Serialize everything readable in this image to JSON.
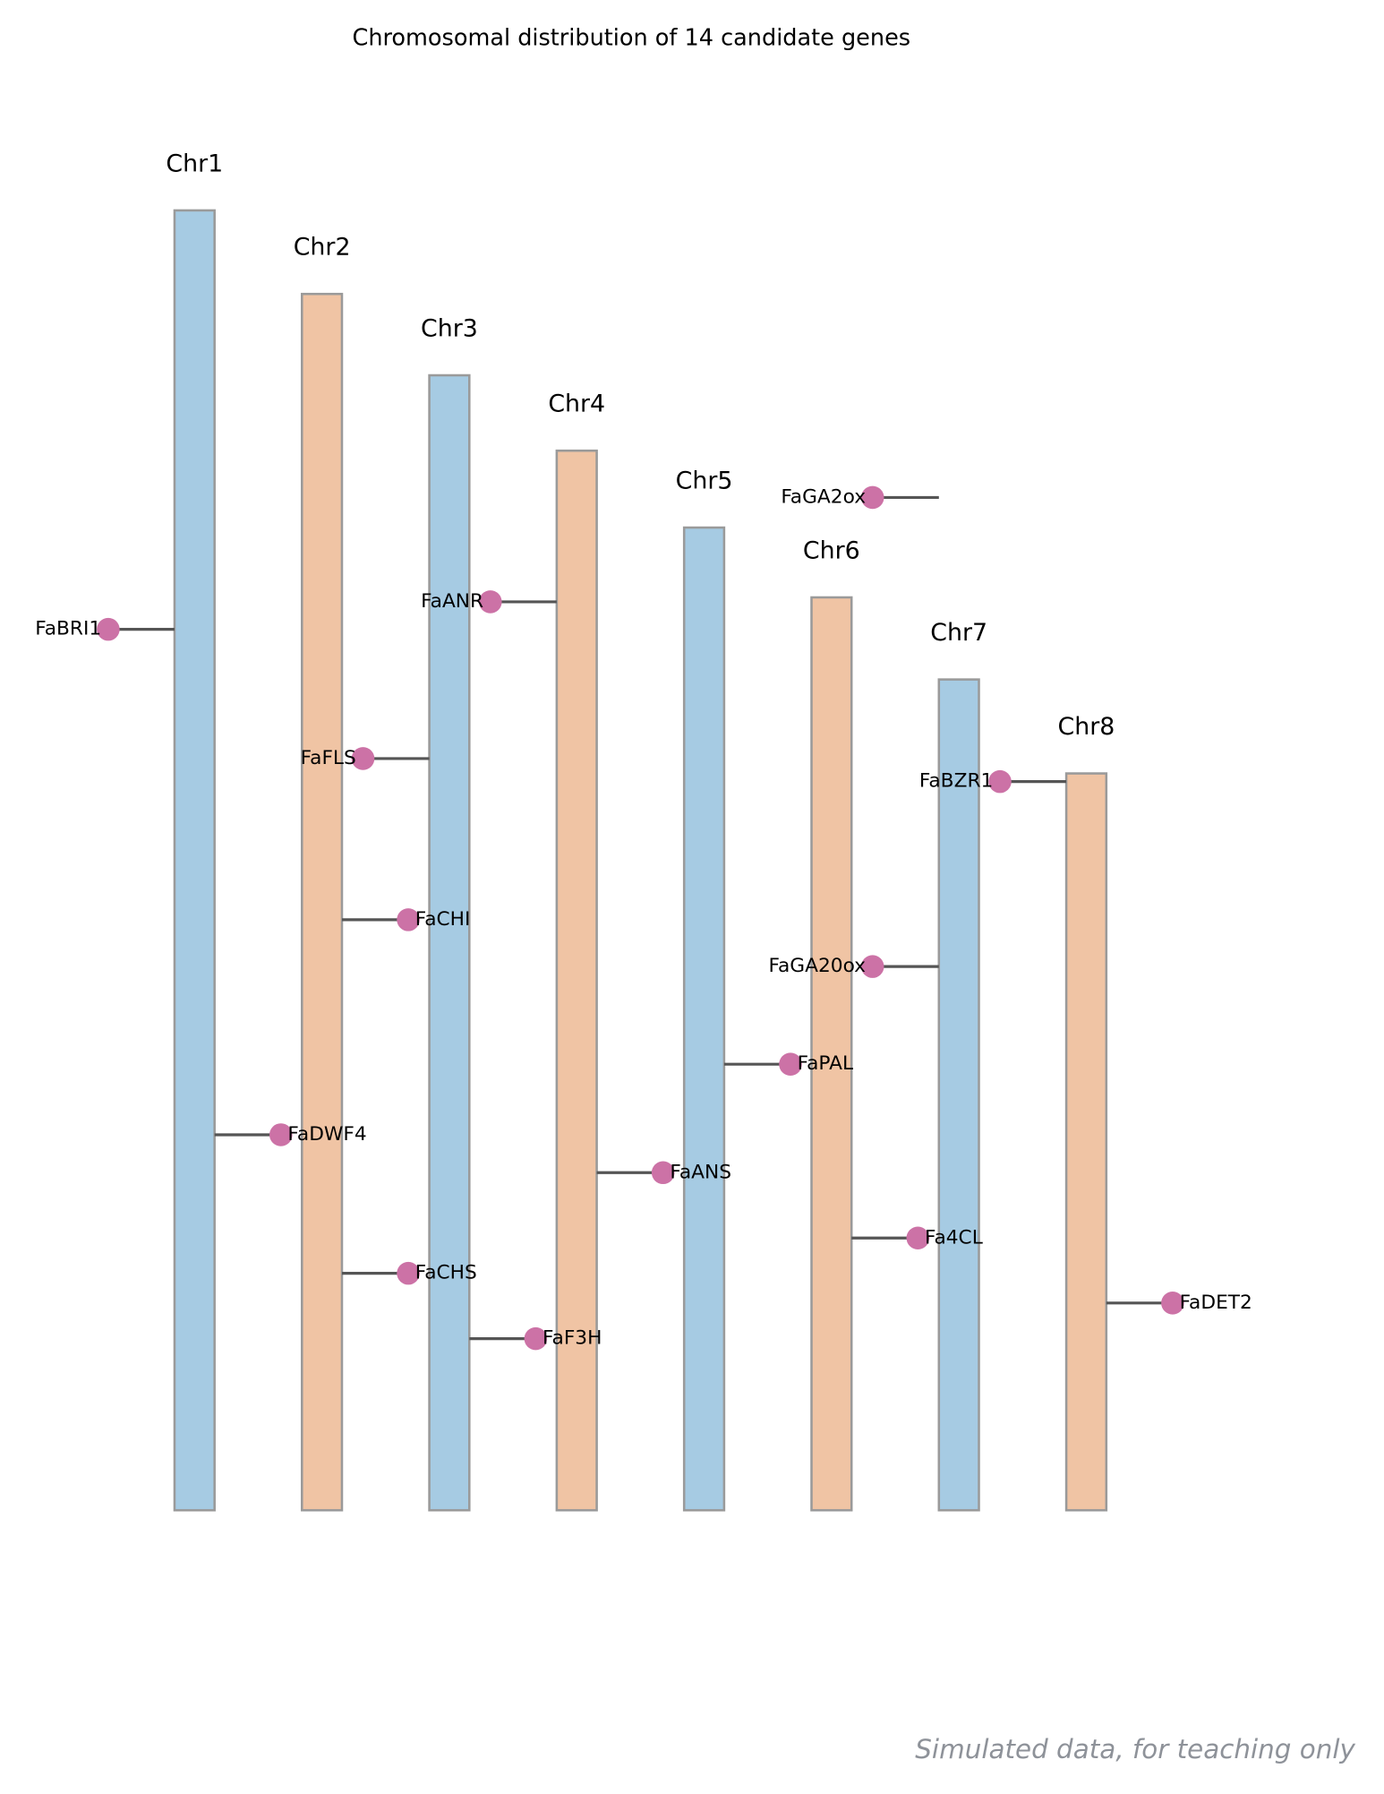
{
  "chart_data": {
    "type": "ideogram",
    "title": "Chromosomal distribution of 14 candidate genes",
    "note": "Simulated data, for teaching only",
    "chromosome_colors": [
      "#a6cbe3",
      "#f0c4a4"
    ],
    "gene_color": "#cc72a6",
    "chromosomes": [
      {
        "name": "Chr1",
        "length": 35.0
      },
      {
        "name": "Chr2",
        "length": 32.75
      },
      {
        "name": "Chr3",
        "length": 30.56
      },
      {
        "name": "Chr4",
        "length": 28.53
      },
      {
        "name": "Chr5",
        "length": 26.46
      },
      {
        "name": "Chr6",
        "length": 24.58
      },
      {
        "name": "Chr7",
        "length": 22.37
      },
      {
        "name": "Chr8",
        "length": 19.84
      }
    ],
    "genes": [
      {
        "name": "FaBRI1",
        "chromosome": "Chr1",
        "position": 11.28,
        "side": "left"
      },
      {
        "name": "FaDWF4",
        "chromosome": "Chr1",
        "position": 24.89,
        "side": "right"
      },
      {
        "name": "FaCHI",
        "chromosome": "Chr2",
        "position": 16.85,
        "side": "right"
      },
      {
        "name": "FaCHS",
        "chromosome": "Chr2",
        "position": 26.37,
        "side": "right"
      },
      {
        "name": "FaFLS",
        "chromosome": "Chr3",
        "position": 10.32,
        "side": "left"
      },
      {
        "name": "FaF3H",
        "chromosome": "Chr3",
        "position": 25.94,
        "side": "right"
      },
      {
        "name": "FaANR",
        "chromosome": "Chr4",
        "position": 4.07,
        "side": "left"
      },
      {
        "name": "FaANS",
        "chromosome": "Chr4",
        "position": 19.44,
        "side": "right"
      },
      {
        "name": "FaPAL",
        "chromosome": "Chr5",
        "position": 14.45,
        "side": "right"
      },
      {
        "name": "Fa4CL",
        "chromosome": "Chr6",
        "position": 17.25,
        "side": "right"
      },
      {
        "name": "FaGA2ox",
        "chromosome": "Chr7",
        "position": -4.9,
        "side": "left"
      },
      {
        "name": "FaGA20ox",
        "chromosome": "Chr7",
        "position": 7.73,
        "side": "left"
      },
      {
        "name": "FaBZR1",
        "chromosome": "Chr8",
        "position": 0.22,
        "side": "left"
      },
      {
        "name": "FaDET2",
        "chromosome": "Chr8",
        "position": 14.26,
        "side": "right"
      }
    ]
  }
}
